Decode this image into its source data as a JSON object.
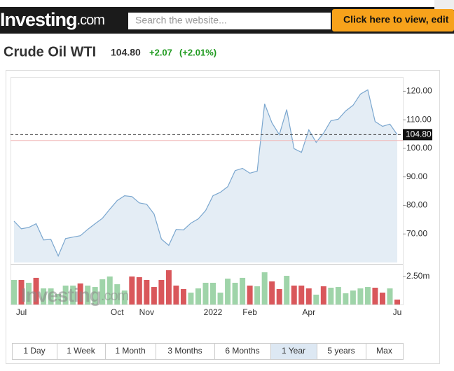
{
  "header": {
    "logo": "Investing",
    "logo_suffix": ".com",
    "search_placeholder": "Search the website...",
    "button": "Click here to view, edit"
  },
  "quote": {
    "name": "Crude Oil WTI",
    "price": "104.80",
    "change": "+2.07",
    "change_pct": "(+2.01%)"
  },
  "chart_data": {
    "type": "area",
    "color": "#7ba7cf",
    "fill": "#e4edf5",
    "categories": [
      null,
      "Jul",
      null,
      null,
      null,
      null,
      null,
      null,
      null,
      null,
      null,
      null,
      null,
      null,
      "Oct",
      null,
      null,
      null,
      "Nov",
      null,
      null,
      null,
      null,
      null,
      null,
      null,
      null,
      "2022",
      null,
      null,
      null,
      null,
      "Feb",
      null,
      null,
      null,
      null,
      null,
      null,
      null,
      "Apr",
      null,
      null,
      null,
      null,
      null,
      null,
      null,
      null,
      null,
      null,
      null,
      "Ju"
    ],
    "values": [
      74.5,
      71.8,
      72.3,
      73.6,
      67.9,
      68.1,
      62.3,
      68.4,
      68.9,
      69.4,
      71.6,
      73.6,
      75.5,
      78.7,
      81.7,
      83.4,
      83.1,
      80.9,
      80.4,
      77.0,
      68.2,
      66.0,
      71.6,
      71.4,
      73.8,
      75.3,
      78.2,
      83.4,
      84.6,
      86.6,
      92.2,
      93.0,
      91.3,
      92.0,
      115.6,
      108.9,
      104.8,
      113.6,
      99.9,
      98.6,
      106.5,
      102.1,
      105.3,
      109.7,
      110.2,
      113.1,
      115.1,
      119.0,
      120.5,
      109.4,
      107.7,
      108.5,
      104.8
    ],
    "ylim": [
      60,
      125
    ],
    "yticks": [
      {
        "value": 70,
        "label": "70.00"
      },
      {
        "value": 80,
        "label": "80.00"
      },
      {
        "value": 90,
        "label": "90.00"
      },
      {
        "value": 100,
        "label": "100.00"
      },
      {
        "value": 110,
        "label": "110.00"
      },
      {
        "value": 120,
        "label": "120.00"
      }
    ],
    "last_price": {
      "value": 104.8,
      "label": "104.80"
    },
    "prev_close": 102.73,
    "volume": {
      "ylim": [
        0,
        2.5
      ],
      "yticks": [
        {
          "value": 2.5,
          "label": "2.50m"
        }
      ],
      "values": [
        2.19,
        2.19,
        1.94,
        2.38,
        1.44,
        1.44,
        0.94,
        1.69,
        1.69,
        1.88,
        1.69,
        1.56,
        2.25,
        2.5,
        1.81,
        1.25,
        2.5,
        2.44,
        2.19,
        1.56,
        2.19,
        3.06,
        1.69,
        1.38,
        1.06,
        1.44,
        1.94,
        1.94,
        1.06,
        2.31,
        1.94,
        2.38,
        1.69,
        1.63,
        2.88,
        2.06,
        1.38,
        2.56,
        1.69,
        1.69,
        1.44,
        0.88,
        1.63,
        1.5,
        1.56,
        1.0,
        1.25,
        1.44,
        1.56,
        1.5,
        1.06,
        1.44,
        0.44
      ],
      "colors": [
        "#9fd4a9",
        "#d9575b",
        "#9fd4a9",
        "#d9575b",
        "#9fd4a9",
        "#9fd4a9",
        "#9fd4a9",
        "#9fd4a9",
        "#9fd4a9",
        "#d9575b",
        "#9fd4a9",
        "#9fd4a9",
        "#9fd4a9",
        "#9fd4a9",
        "#9fd4a9",
        "#9fd4a9",
        "#d9575b",
        "#d9575b",
        "#d9575b",
        "#d9575b",
        "#d9575b",
        "#d9575b",
        "#d9575b",
        "#d9575b",
        "#9fd4a9",
        "#9fd4a9",
        "#9fd4a9",
        "#9fd4a9",
        "#9fd4a9",
        "#9fd4a9",
        "#9fd4a9",
        "#9fd4a9",
        "#d9575b",
        "#9fd4a9",
        "#9fd4a9",
        "#d9575b",
        "#d9575b",
        "#9fd4a9",
        "#d9575b",
        "#d9575b",
        "#d9575b",
        "#9fd4a9",
        "#d9575b",
        "#9fd4a9",
        "#9fd4a9",
        "#9fd4a9",
        "#9fd4a9",
        "#9fd4a9",
        "#9fd4a9",
        "#d9575b",
        "#d9575b",
        "#9fd4a9",
        "#d9575b"
      ]
    }
  },
  "range_buttons": {
    "labels": [
      "1 Day",
      "1 Week",
      "1 Month",
      "3 Months",
      "6 Months",
      "1 Year",
      "5 years",
      "Max"
    ],
    "selected": 5
  }
}
